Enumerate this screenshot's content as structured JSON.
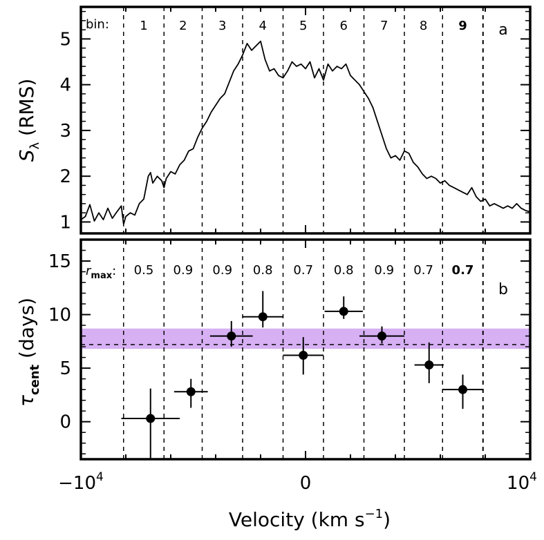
{
  "chart_data": [
    {
      "panel": "a",
      "type": "line",
      "panel_label": "a",
      "ylabel": "S",
      "ylabel_sub": "λ",
      "ylabel_suffix": "(RMS)",
      "xlim": [
        -10000,
        10000
      ],
      "ylim": [
        0.75,
        5.7
      ],
      "yticks": [
        1,
        2,
        3,
        4,
        5
      ],
      "ytick_labels": [
        "1",
        "2",
        "3",
        "4",
        "5"
      ],
      "bins_title": "bin:",
      "bin_labels": [
        "1",
        "2",
        "3",
        "4",
        "5",
        "6",
        "7",
        "8",
        "9"
      ],
      "bin_edges": [
        -8100,
        -6300,
        -4600,
        -2800,
        -1000,
        800,
        2600,
        4400,
        6100,
        7900
      ],
      "x": [
        -10000,
        -9800,
        -9600,
        -9400,
        -9200,
        -9000,
        -8800,
        -8600,
        -8400,
        -8200,
        -8100,
        -8000,
        -7800,
        -7600,
        -7400,
        -7200,
        -7000,
        -6900,
        -6800,
        -6600,
        -6400,
        -6300,
        -6200,
        -6000,
        -5800,
        -5600,
        -5400,
        -5200,
        -5000,
        -4800,
        -4600,
        -4400,
        -4200,
        -4000,
        -3800,
        -3600,
        -3400,
        -3200,
        -3000,
        -2800,
        -2600,
        -2400,
        -2200,
        -2000,
        -1800,
        -1600,
        -1400,
        -1200,
        -1000,
        -800,
        -600,
        -400,
        -200,
        0,
        200,
        400,
        600,
        800,
        1000,
        1200,
        1400,
        1600,
        1800,
        2000,
        2200,
        2400,
        2600,
        2800,
        3000,
        3200,
        3400,
        3600,
        3800,
        4000,
        4200,
        4400,
        4600,
        4800,
        5000,
        5200,
        5400,
        5600,
        5800,
        6000,
        6200,
        6400,
        6600,
        6800,
        7000,
        7200,
        7400,
        7600,
        7800,
        8000,
        8200,
        8400,
        8600,
        8800,
        9000,
        9200,
        9400,
        9600,
        9800,
        10000
      ],
      "y": [
        1.05,
        1.12,
        1.38,
        1.02,
        1.2,
        1.05,
        1.3,
        1.08,
        1.22,
        1.35,
        0.95,
        1.12,
        1.2,
        1.15,
        1.4,
        1.5,
        2.0,
        2.08,
        1.85,
        2.0,
        1.9,
        1.75,
        1.95,
        2.1,
        2.05,
        2.25,
        2.35,
        2.55,
        2.6,
        2.85,
        3.05,
        3.2,
        3.4,
        3.55,
        3.7,
        3.8,
        4.05,
        4.3,
        4.45,
        4.65,
        4.9,
        4.75,
        4.85,
        4.95,
        4.55,
        4.3,
        4.35,
        4.2,
        4.15,
        4.3,
        4.5,
        4.4,
        4.45,
        4.35,
        4.5,
        4.15,
        4.35,
        4.1,
        4.45,
        4.3,
        4.4,
        4.35,
        4.45,
        4.2,
        4.1,
        4.0,
        3.85,
        3.7,
        3.5,
        3.2,
        2.9,
        2.6,
        2.4,
        2.45,
        2.35,
        2.55,
        2.5,
        2.3,
        2.2,
        2.05,
        1.95,
        2.0,
        1.95,
        1.85,
        1.9,
        1.8,
        1.75,
        1.7,
        1.65,
        1.6,
        1.75,
        1.55,
        1.45,
        1.5,
        1.35,
        1.4,
        1.35,
        1.3,
        1.35,
        1.3,
        1.4,
        1.3,
        1.25,
        1.22
      ]
    },
    {
      "panel": "b",
      "type": "scatter",
      "panel_label": "b",
      "ylabel": "τ",
      "ylabel_sub": "cent",
      "ylabel_suffix": "(days)",
      "xlabel": "Velocity (km s",
      "xlabel_sup": "−1",
      "xlabel_suffix": ")",
      "xlim": [
        -10000,
        10000
      ],
      "ylim": [
        -3.5,
        17
      ],
      "yticks": [
        0,
        5,
        10,
        15
      ],
      "ytick_labels": [
        "0",
        "5",
        "10",
        "15"
      ],
      "xtick_labels": [
        {
          "base": "−10",
          "exp": "4"
        },
        {
          "base": "0",
          "exp": ""
        },
        {
          "base": "10",
          "exp": "4"
        }
      ],
      "xtick_values": [
        -10000,
        0,
        10000
      ],
      "rmax_title": "r",
      "rmax_sub": "max",
      "rmax_values": [
        "0.5",
        "0.9",
        "0.9",
        "0.8",
        "0.7",
        "0.8",
        "0.9",
        "0.7",
        "0.7"
      ],
      "band": {
        "low": 6.8,
        "high": 8.7,
        "color": "#d6b0f3"
      },
      "mean_line": 7.2,
      "bin_edges": [
        -8100,
        -6300,
        -4600,
        -2800,
        -1000,
        800,
        2600,
        4400,
        6100,
        7900
      ],
      "points": [
        {
          "x": -6900,
          "y": 0.3,
          "xerr": 1300,
          "yerr_low": 3.8,
          "yerr_high": 2.8
        },
        {
          "x": -5100,
          "y": 2.8,
          "xerr": 750,
          "yerr_low": 1.5,
          "yerr_high": 1.2
        },
        {
          "x": -3300,
          "y": 8.0,
          "xerr": 950,
          "yerr_low": 1.0,
          "yerr_high": 1.4
        },
        {
          "x": -1900,
          "y": 9.8,
          "xerr": 900,
          "yerr_low": 1.0,
          "yerr_high": 2.4
        },
        {
          "x": -100,
          "y": 6.2,
          "xerr": 900,
          "yerr_low": 1.8,
          "yerr_high": 1.7
        },
        {
          "x": 1700,
          "y": 10.3,
          "xerr": 850,
          "yerr_low": 0.7,
          "yerr_high": 1.4
        },
        {
          "x": 3400,
          "y": 8.0,
          "xerr": 1000,
          "yerr_low": 0.7,
          "yerr_high": 0.9
        },
        {
          "x": 5500,
          "y": 5.3,
          "xerr": 650,
          "yerr_low": 1.7,
          "yerr_high": 2.1
        },
        {
          "x": 7000,
          "y": 3.0,
          "xerr": 900,
          "yerr_low": 1.8,
          "yerr_high": 1.4
        }
      ]
    }
  ]
}
